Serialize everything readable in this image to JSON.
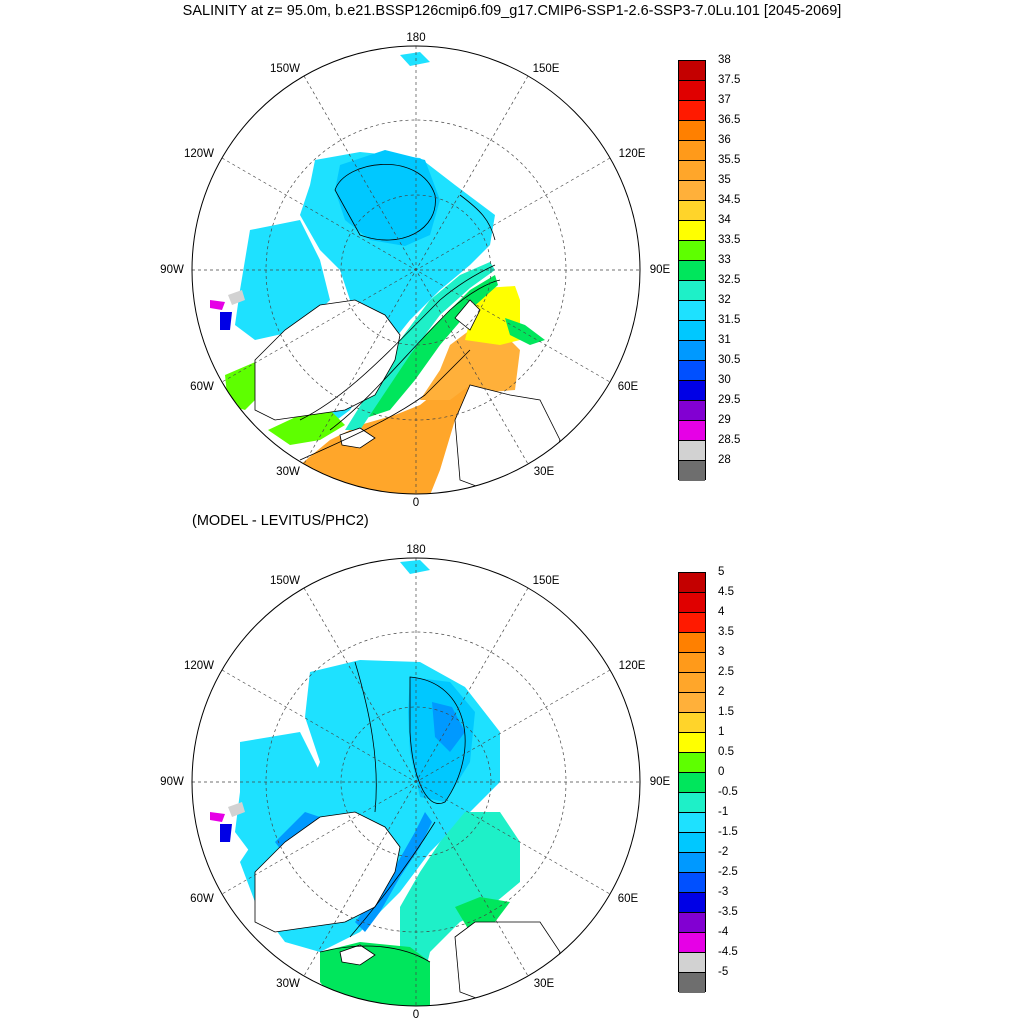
{
  "title": "SALINITY at z=  95.0m, b.e21.BSSP126cmip6.f09_g17.CMIP6-SSP1-2.6-SSP3-7.0Lu.101 [2045-2069]",
  "subtitle": "(MODEL - LEVITUS/PHC2)",
  "map_labels": {
    "top": "180",
    "bottom": "0",
    "left": "90W",
    "right": "90E",
    "nw_upper": "150W",
    "nw_lower": "120W",
    "ne_upper": "150E",
    "ne_lower": "120E",
    "sw_upper": "60W",
    "sw_lower": "30W",
    "se_upper": "60E",
    "se_lower": "30E"
  },
  "colors": {
    "land": "#ffffff",
    "coast": "#000000"
  },
  "panels": [
    {
      "name": "salinity",
      "colorbar": {
        "labels": [
          "38",
          "37.5",
          "37",
          "36.5",
          "36",
          "35.5",
          "35",
          "34.5",
          "34",
          "33.5",
          "33",
          "32.5",
          "32",
          "31.5",
          "31",
          "30.5",
          "30",
          "29.5",
          "29",
          "28.5",
          "28"
        ],
        "colors": [
          "#c40000",
          "#e00000",
          "#ff1a00",
          "#ff8000",
          "#ff9a1a",
          "#ffa62a",
          "#ffb03a",
          "#ffd42a",
          "#ffff00",
          "#5eff00",
          "#00e65c",
          "#1ef0c8",
          "#1ee1ff",
          "#00c8ff",
          "#0099ff",
          "#0050ff",
          "#0000e6",
          "#8200d2",
          "#e600e6",
          "#d2d2d2",
          "#6e6e6e"
        ]
      }
    },
    {
      "name": "difference",
      "colorbar": {
        "labels": [
          "5",
          "4.5",
          "4",
          "3.5",
          "3",
          "2.5",
          "2",
          "1.5",
          "1",
          "0.5",
          "0",
          "-0.5",
          "-1",
          "-1.5",
          "-2",
          "-2.5",
          "-3",
          "-3.5",
          "-4",
          "-4.5",
          "-5"
        ],
        "colors": [
          "#c40000",
          "#e00000",
          "#ff1a00",
          "#ff8000",
          "#ff9a1a",
          "#ffa62a",
          "#ffb03a",
          "#ffd42a",
          "#ffff00",
          "#5eff00",
          "#00e65c",
          "#1ef0c8",
          "#1ee1ff",
          "#00c8ff",
          "#0099ff",
          "#0050ff",
          "#0000e6",
          "#8200d2",
          "#e600e6",
          "#d2d2d2",
          "#6e6e6e"
        ]
      }
    }
  ]
}
